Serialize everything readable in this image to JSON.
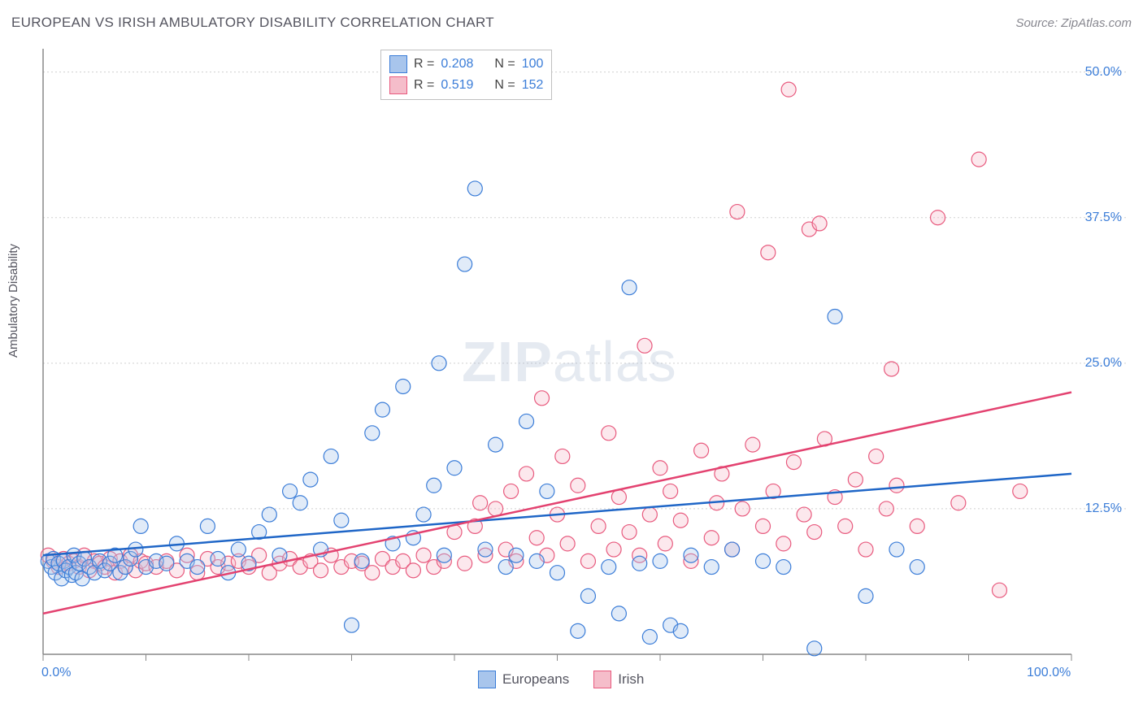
{
  "header": {
    "title": "EUROPEAN VS IRISH AMBULATORY DISABILITY CORRELATION CHART",
    "source": "Source: ZipAtlas.com"
  },
  "chart": {
    "type": "scatter",
    "y_axis_label": "Ambulatory Disability",
    "background_color": "#ffffff",
    "grid_color": "#d0d0d0",
    "axis_color": "#888888",
    "xlim": [
      0,
      100
    ],
    "ylim": [
      0,
      52
    ],
    "x_tick_positions": [
      0,
      10,
      20,
      30,
      40,
      50,
      60,
      70,
      80,
      90,
      100
    ],
    "x_tick_labels_shown": {
      "0": "0.0%",
      "100": "100.0%"
    },
    "y_tick_positions": [
      12.5,
      25.0,
      37.5,
      50.0
    ],
    "y_tick_labels": [
      "12.5%",
      "25.0%",
      "37.5%",
      "50.0%"
    ],
    "tick_label_color": "#3b7dd8",
    "tick_label_fontsize": 16,
    "axis_label_color": "#555560",
    "axis_label_fontsize": 15,
    "marker_radius": 9,
    "marker_fill_opacity": 0.35,
    "marker_stroke_width": 1.2,
    "trend_line_width": 2.5,
    "watermark": {
      "bold": "ZIP",
      "light": "atlas",
      "color": "rgba(150,170,200,0.25)",
      "fontsize": 70
    }
  },
  "series": {
    "europeans": {
      "label": "Europeans",
      "fill_color": "#a8c5ec",
      "stroke_color": "#3b7dd8",
      "trend_color": "#1f66c7",
      "R": "0.208",
      "N": "100",
      "trend": {
        "x1": 0,
        "y1": 8.5,
        "x2": 100,
        "y2": 15.5
      },
      "points": [
        [
          0.5,
          8.0
        ],
        [
          0.8,
          7.5
        ],
        [
          1.0,
          8.2
        ],
        [
          1.2,
          7.0
        ],
        [
          1.5,
          7.8
        ],
        [
          1.8,
          6.5
        ],
        [
          2.0,
          8.0
        ],
        [
          2.2,
          7.2
        ],
        [
          2.5,
          7.5
        ],
        [
          2.8,
          6.8
        ],
        [
          3.0,
          8.5
        ],
        [
          3.2,
          7.0
        ],
        [
          3.5,
          7.8
        ],
        [
          3.8,
          6.5
        ],
        [
          4.0,
          8.2
        ],
        [
          4.5,
          7.5
        ],
        [
          5.0,
          7.0
        ],
        [
          5.5,
          8.0
        ],
        [
          6.0,
          7.2
        ],
        [
          6.5,
          7.8
        ],
        [
          7.0,
          8.5
        ],
        [
          7.5,
          7.0
        ],
        [
          8.0,
          7.5
        ],
        [
          8.5,
          8.2
        ],
        [
          9.0,
          9.0
        ],
        [
          9.5,
          11.0
        ],
        [
          10.0,
          7.5
        ],
        [
          11.0,
          8.0
        ],
        [
          12.0,
          7.8
        ],
        [
          13.0,
          9.5
        ],
        [
          14.0,
          8.0
        ],
        [
          15.0,
          7.5
        ],
        [
          16.0,
          11.0
        ],
        [
          17.0,
          8.2
        ],
        [
          18.0,
          7.0
        ],
        [
          19.0,
          9.0
        ],
        [
          20.0,
          7.8
        ],
        [
          21.0,
          10.5
        ],
        [
          22.0,
          12.0
        ],
        [
          23.0,
          8.5
        ],
        [
          24.0,
          14.0
        ],
        [
          25.0,
          13.0
        ],
        [
          26.0,
          15.0
        ],
        [
          27.0,
          9.0
        ],
        [
          28.0,
          17.0
        ],
        [
          29.0,
          11.5
        ],
        [
          30.0,
          2.5
        ],
        [
          31.0,
          8.0
        ],
        [
          32.0,
          19.0
        ],
        [
          33.0,
          21.0
        ],
        [
          34.0,
          9.5
        ],
        [
          35.0,
          23.0
        ],
        [
          36.0,
          10.0
        ],
        [
          37.0,
          12.0
        ],
        [
          38.0,
          14.5
        ],
        [
          38.5,
          25.0
        ],
        [
          39.0,
          8.5
        ],
        [
          40.0,
          16.0
        ],
        [
          41.0,
          33.5
        ],
        [
          42.0,
          40.0
        ],
        [
          43.0,
          9.0
        ],
        [
          44.0,
          18.0
        ],
        [
          45.0,
          7.5
        ],
        [
          46.0,
          8.5
        ],
        [
          47.0,
          20.0
        ],
        [
          48.0,
          8.0
        ],
        [
          49.0,
          14.0
        ],
        [
          50.0,
          7.0
        ],
        [
          52.0,
          2.0
        ],
        [
          53.0,
          5.0
        ],
        [
          55.0,
          7.5
        ],
        [
          56.0,
          3.5
        ],
        [
          57.0,
          31.5
        ],
        [
          58.0,
          7.8
        ],
        [
          59.0,
          1.5
        ],
        [
          60.0,
          8.0
        ],
        [
          61.0,
          2.5
        ],
        [
          62.0,
          2.0
        ],
        [
          63.0,
          8.5
        ],
        [
          65.0,
          7.5
        ],
        [
          67.0,
          9.0
        ],
        [
          70.0,
          8.0
        ],
        [
          72.0,
          7.5
        ],
        [
          75.0,
          0.5
        ],
        [
          77.0,
          29.0
        ],
        [
          80.0,
          5.0
        ],
        [
          83.0,
          9.0
        ],
        [
          85.0,
          7.5
        ]
      ]
    },
    "irish": {
      "label": "Irish",
      "fill_color": "#f5bdca",
      "stroke_color": "#e85a7e",
      "trend_color": "#e34270",
      "R": "0.519",
      "N": "152",
      "trend": {
        "x1": 0,
        "y1": 3.5,
        "x2": 100,
        "y2": 22.5
      },
      "points": [
        [
          0.5,
          8.5
        ],
        [
          1.0,
          8.0
        ],
        [
          1.5,
          7.5
        ],
        [
          2.0,
          8.2
        ],
        [
          2.5,
          7.8
        ],
        [
          3.0,
          8.0
        ],
        [
          3.5,
          7.5
        ],
        [
          4.0,
          8.5
        ],
        [
          4.5,
          7.2
        ],
        [
          5.0,
          8.0
        ],
        [
          5.5,
          7.8
        ],
        [
          6.0,
          7.5
        ],
        [
          6.5,
          8.2
        ],
        [
          7.0,
          7.0
        ],
        [
          7.5,
          8.0
        ],
        [
          8.0,
          7.5
        ],
        [
          8.5,
          8.5
        ],
        [
          9.0,
          7.2
        ],
        [
          9.5,
          8.0
        ],
        [
          10.0,
          7.8
        ],
        [
          11.0,
          7.5
        ],
        [
          12.0,
          8.0
        ],
        [
          13.0,
          7.2
        ],
        [
          14.0,
          8.5
        ],
        [
          15.0,
          7.0
        ],
        [
          16.0,
          8.2
        ],
        [
          17.0,
          7.5
        ],
        [
          18.0,
          7.8
        ],
        [
          19.0,
          8.0
        ],
        [
          20.0,
          7.5
        ],
        [
          21.0,
          8.5
        ],
        [
          22.0,
          7.0
        ],
        [
          23.0,
          7.8
        ],
        [
          24.0,
          8.2
        ],
        [
          25.0,
          7.5
        ],
        [
          26.0,
          8.0
        ],
        [
          27.0,
          7.2
        ],
        [
          28.0,
          8.5
        ],
        [
          29.0,
          7.5
        ],
        [
          30.0,
          8.0
        ],
        [
          31.0,
          7.8
        ],
        [
          32.0,
          7.0
        ],
        [
          33.0,
          8.2
        ],
        [
          34.0,
          7.5
        ],
        [
          35.0,
          8.0
        ],
        [
          36.0,
          7.2
        ],
        [
          37.0,
          8.5
        ],
        [
          38.0,
          7.5
        ],
        [
          39.0,
          8.0
        ],
        [
          40.0,
          10.5
        ],
        [
          41.0,
          7.8
        ],
        [
          42.0,
          11.0
        ],
        [
          42.5,
          13.0
        ],
        [
          43.0,
          8.5
        ],
        [
          44.0,
          12.5
        ],
        [
          45.0,
          9.0
        ],
        [
          45.5,
          14.0
        ],
        [
          46.0,
          8.0
        ],
        [
          47.0,
          15.5
        ],
        [
          48.0,
          10.0
        ],
        [
          48.5,
          22.0
        ],
        [
          49.0,
          8.5
        ],
        [
          50.0,
          12.0
        ],
        [
          50.5,
          17.0
        ],
        [
          51.0,
          9.5
        ],
        [
          52.0,
          14.5
        ],
        [
          53.0,
          8.0
        ],
        [
          54.0,
          11.0
        ],
        [
          55.0,
          19.0
        ],
        [
          55.5,
          9.0
        ],
        [
          56.0,
          13.5
        ],
        [
          57.0,
          10.5
        ],
        [
          58.0,
          8.5
        ],
        [
          58.5,
          26.5
        ],
        [
          59.0,
          12.0
        ],
        [
          60.0,
          16.0
        ],
        [
          60.5,
          9.5
        ],
        [
          61.0,
          14.0
        ],
        [
          62.0,
          11.5
        ],
        [
          63.0,
          8.0
        ],
        [
          64.0,
          17.5
        ],
        [
          65.0,
          10.0
        ],
        [
          65.5,
          13.0
        ],
        [
          66.0,
          15.5
        ],
        [
          67.0,
          9.0
        ],
        [
          67.5,
          38.0
        ],
        [
          68.0,
          12.5
        ],
        [
          69.0,
          18.0
        ],
        [
          70.0,
          11.0
        ],
        [
          70.5,
          34.5
        ],
        [
          71.0,
          14.0
        ],
        [
          72.0,
          9.5
        ],
        [
          72.5,
          48.5
        ],
        [
          73.0,
          16.5
        ],
        [
          74.0,
          12.0
        ],
        [
          74.5,
          36.5
        ],
        [
          75.0,
          10.5
        ],
        [
          75.5,
          37.0
        ],
        [
          76.0,
          18.5
        ],
        [
          77.0,
          13.5
        ],
        [
          78.0,
          11.0
        ],
        [
          79.0,
          15.0
        ],
        [
          80.0,
          9.0
        ],
        [
          81.0,
          17.0
        ],
        [
          82.0,
          12.5
        ],
        [
          82.5,
          24.5
        ],
        [
          83.0,
          14.5
        ],
        [
          85.0,
          11.0
        ],
        [
          87.0,
          37.5
        ],
        [
          89.0,
          13.0
        ],
        [
          91.0,
          42.5
        ],
        [
          93.0,
          5.5
        ],
        [
          95.0,
          14.0
        ]
      ]
    }
  },
  "legend_top": {
    "r_label": "R =",
    "n_label": "N ="
  },
  "legend_bottom": {
    "items": [
      "europeans",
      "irish"
    ]
  }
}
